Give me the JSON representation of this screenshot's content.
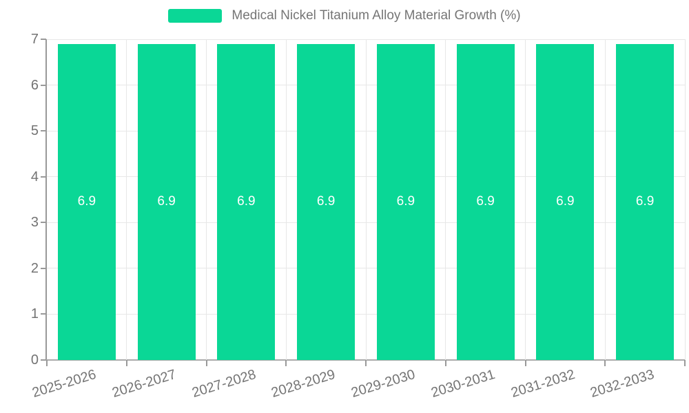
{
  "colors": {
    "bar": "#0ad796",
    "axis_line": "#999999",
    "grid_line": "#e7e7e7",
    "tick_text": "#737373",
    "label_text": "#757575",
    "value_label_text": "#ffffff",
    "background": "#ffffff"
  },
  "legend": {
    "label": "Medical Nickel Titanium Alloy Material Growth (%)"
  },
  "chart_data": {
    "type": "bar",
    "title": "Medical Nickel Titanium Alloy Material Growth (%)",
    "categories": [
      "2025-2026",
      "2026-2027",
      "2027-2028",
      "2028-2029",
      "2029-2030",
      "2030-2031",
      "2031-2032",
      "2032-2033"
    ],
    "values": [
      6.9,
      6.9,
      6.9,
      6.9,
      6.9,
      6.9,
      6.9,
      6.9
    ],
    "value_labels": [
      "6.9",
      "6.9",
      "6.9",
      "6.9",
      "6.9",
      "6.9",
      "6.9",
      "6.9"
    ],
    "xlabel": "",
    "ylabel": "",
    "ylim": [
      0,
      7
    ],
    "yticks": [
      0,
      1,
      2,
      3,
      4,
      5,
      6,
      7
    ],
    "grid": true,
    "legend_position": "top-center",
    "x_label_rotation_deg": -17,
    "series": [
      {
        "name": "Medical Nickel Titanium Alloy Material Growth (%)",
        "values": [
          6.9,
          6.9,
          6.9,
          6.9,
          6.9,
          6.9,
          6.9,
          6.9
        ]
      }
    ]
  }
}
